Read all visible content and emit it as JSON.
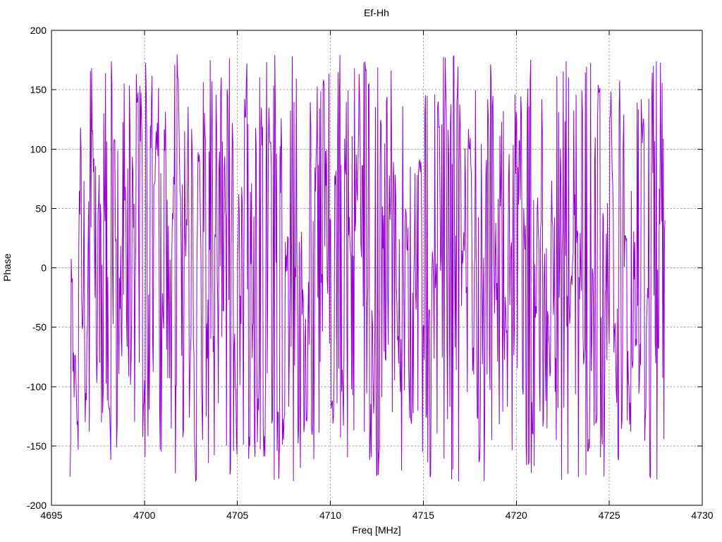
{
  "chart_data": {
    "type": "line",
    "title": "Ef-Hh",
    "xlabel": "Freq [MHz]",
    "ylabel": "Phase",
    "xlim": [
      4695,
      4730
    ],
    "ylim": [
      -200,
      200
    ],
    "x_ticks": [
      4695,
      4700,
      4705,
      4710,
      4715,
      4720,
      4725,
      4730
    ],
    "y_ticks": [
      -200,
      -150,
      -100,
      -50,
      0,
      50,
      100,
      150,
      200
    ],
    "grid": true,
    "legend": "none",
    "data_description": "Noise-like wrapped interferometric phase vs frequency; phase values wrap between -180 and +180 degrees across the band 4696-4728 MHz, producing dense near-vertical strokes.",
    "series": [
      {
        "name": "Ef-Hh",
        "color": "#9400D3",
        "x_start": 4696.0,
        "x_end": 4728.0,
        "n_points": 1024,
        "y_min": -180,
        "y_max": 180,
        "synthesis": {
          "model": "wrapped-phase-mix",
          "seed": 7,
          "cluster_prob": 0.3,
          "cluster_step_max": 30
        }
      }
    ]
  },
  "colors": {
    "trace": "#9400D3",
    "grid": "#a6a6a6",
    "border": "#000000",
    "background": "#ffffff",
    "text": "#000000"
  }
}
